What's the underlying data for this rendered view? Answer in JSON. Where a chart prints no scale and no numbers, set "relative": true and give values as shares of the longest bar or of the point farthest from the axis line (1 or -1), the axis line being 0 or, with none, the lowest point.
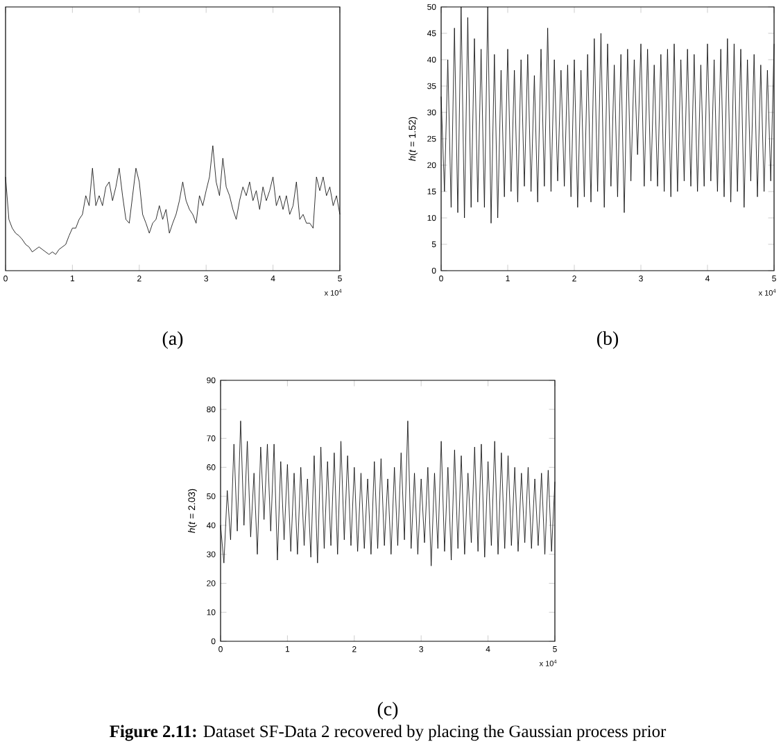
{
  "chart_data": [
    {
      "type": "line",
      "title": "(a)",
      "relative": true,
      "tick_labels": "x",
      "color": "#000000",
      "xlim": [
        0,
        5
      ],
      "xticks": [
        0,
        1,
        2,
        3,
        4,
        5
      ],
      "annotations": [
        "x 10$^{4}$"
      ],
      "x": [
        0,
        0.05,
        0.1,
        0.15,
        0.2,
        0.25,
        0.3,
        0.35,
        0.4,
        0.45,
        0.5,
        0.55,
        0.6,
        0.65,
        0.7,
        0.75,
        0.8,
        0.85,
        0.9,
        0.95,
        1,
        1.05,
        1.1,
        1.15,
        1.2,
        1.25,
        1.3,
        1.35,
        1.4,
        1.45,
        1.5,
        1.55,
        1.6,
        1.65,
        1.7,
        1.75,
        1.8,
        1.85,
        1.9,
        1.95,
        2,
        2.05,
        2.1,
        2.15,
        2.2,
        2.25,
        2.3,
        2.35,
        2.4,
        2.45,
        2.5,
        2.55,
        2.6,
        2.65,
        2.7,
        2.75,
        2.8,
        2.85,
        2.9,
        2.95,
        3,
        3.05,
        3.1,
        3.15,
        3.2,
        3.25,
        3.3,
        3.35,
        3.4,
        3.45,
        3.5,
        3.55,
        3.6,
        3.65,
        3.7,
        3.75,
        3.8,
        3.85,
        3.9,
        3.95,
        4,
        4.05,
        4.1,
        4.15,
        4.2,
        4.25,
        4.3,
        4.35,
        4.4,
        4.45,
        4.5,
        4.55,
        4.6,
        4.65,
        4.7,
        4.75,
        4.8,
        4.85,
        4.9,
        4.95,
        5
      ],
      "values": [
        0.75,
        0.41,
        0.34,
        0.3,
        0.28,
        0.25,
        0.21,
        0.19,
        0.15,
        0.17,
        0.19,
        0.17,
        0.15,
        0.13,
        0.15,
        0.13,
        0.17,
        0.19,
        0.21,
        0.28,
        0.34,
        0.34,
        0.41,
        0.45,
        0.6,
        0.52,
        0.82,
        0.52,
        0.6,
        0.52,
        0.67,
        0.71,
        0.56,
        0.67,
        0.82,
        0.6,
        0.41,
        0.38,
        0.6,
        0.82,
        0.71,
        0.45,
        0.38,
        0.3,
        0.38,
        0.41,
        0.52,
        0.41,
        0.49,
        0.3,
        0.38,
        0.45,
        0.56,
        0.71,
        0.56,
        0.49,
        0.45,
        0.38,
        0.6,
        0.52,
        0.64,
        0.75,
        1,
        0.71,
        0.6,
        0.9,
        0.67,
        0.6,
        0.49,
        0.41,
        0.56,
        0.67,
        0.6,
        0.71,
        0.56,
        0.64,
        0.49,
        0.67,
        0.56,
        0.64,
        0.75,
        0.52,
        0.6,
        0.49,
        0.6,
        0.45,
        0.52,
        0.71,
        0.41,
        0.45,
        0.38,
        0.38,
        0.34,
        0.75,
        0.64,
        0.75,
        0.6,
        0.67,
        0.52,
        0.6,
        0.45
      ]
    },
    {
      "type": "line",
      "title": "(b)",
      "ylabel": "*h*(*t* = 1.52)",
      "color": "#000000",
      "xlim": [
        0,
        5
      ],
      "xticks": [
        0,
        1,
        2,
        3,
        4,
        5
      ],
      "ylim": [
        0,
        50
      ],
      "yticks": [
        0,
        5,
        10,
        15,
        20,
        25,
        30,
        35,
        40,
        45,
        50
      ],
      "annotations": [
        "x 10$^{4}$"
      ],
      "x": [
        0,
        0.05,
        0.1,
        0.15,
        0.2,
        0.25,
        0.3,
        0.35,
        0.4,
        0.45,
        0.5,
        0.55,
        0.6,
        0.65,
        0.7,
        0.75,
        0.8,
        0.85,
        0.9,
        0.95,
        1,
        1.05,
        1.1,
        1.15,
        1.2,
        1.25,
        1.3,
        1.35,
        1.4,
        1.45,
        1.5,
        1.55,
        1.6,
        1.65,
        1.7,
        1.75,
        1.8,
        1.85,
        1.9,
        1.95,
        2,
        2.05,
        2.1,
        2.15,
        2.2,
        2.25,
        2.3,
        2.35,
        2.4,
        2.45,
        2.5,
        2.55,
        2.6,
        2.65,
        2.7,
        2.75,
        2.8,
        2.85,
        2.9,
        2.95,
        3,
        3.05,
        3.1,
        3.15,
        3.2,
        3.25,
        3.3,
        3.35,
        3.4,
        3.45,
        3.5,
        3.55,
        3.6,
        3.65,
        3.7,
        3.75,
        3.8,
        3.85,
        3.9,
        3.95,
        4,
        4.05,
        4.1,
        4.15,
        4.2,
        4.25,
        4.3,
        4.35,
        4.4,
        4.45,
        4.5,
        4.55,
        4.6,
        4.65,
        4.7,
        4.75,
        4.8,
        4.85,
        4.9,
        4.95,
        5
      ],
      "values": [
        33,
        15,
        40,
        12,
        46,
        11,
        50,
        10,
        48,
        12,
        44,
        13,
        42,
        12,
        50,
        9,
        41,
        10,
        38,
        14,
        42,
        15,
        38,
        13,
        40,
        16,
        41,
        15,
        37,
        13,
        42,
        16,
        46,
        15,
        40,
        17,
        38,
        16,
        39,
        14,
        40,
        12,
        38,
        14,
        41,
        13,
        44,
        15,
        45,
        12,
        43,
        16,
        39,
        14,
        41,
        11,
        42,
        17,
        40,
        22,
        43,
        16,
        42,
        17,
        39,
        16,
        41,
        15,
        42,
        14,
        43,
        15,
        40,
        17,
        42,
        16,
        41,
        15,
        39,
        16,
        43,
        17,
        40,
        15,
        42,
        14,
        44,
        13,
        43,
        15,
        42,
        12,
        40,
        17,
        41,
        14,
        39,
        15,
        38,
        17,
        43
      ]
    },
    {
      "type": "line",
      "title": "(c)",
      "ylabel": "*h*(*t* = 2.03)",
      "color": "#000000",
      "xlim": [
        0,
        5
      ],
      "xticks": [
        0,
        1,
        2,
        3,
        4,
        5
      ],
      "ylim": [
        0,
        90
      ],
      "yticks": [
        0,
        10,
        20,
        30,
        40,
        50,
        60,
        70,
        80,
        90
      ],
      "annotations": [
        "x 10$^{4}$",
        "**Figure 2.11:** Dataset SF-Data 2 recovered by placing the Gaussian process prior"
      ],
      "x": [
        0,
        0.05,
        0.1,
        0.15,
        0.2,
        0.25,
        0.3,
        0.35,
        0.4,
        0.45,
        0.5,
        0.55,
        0.6,
        0.65,
        0.7,
        0.75,
        0.8,
        0.85,
        0.9,
        0.95,
        1,
        1.05,
        1.1,
        1.15,
        1.2,
        1.25,
        1.3,
        1.35,
        1.4,
        1.45,
        1.5,
        1.55,
        1.6,
        1.65,
        1.7,
        1.75,
        1.8,
        1.85,
        1.9,
        1.95,
        2,
        2.05,
        2.1,
        2.15,
        2.2,
        2.25,
        2.3,
        2.35,
        2.4,
        2.45,
        2.5,
        2.55,
        2.6,
        2.65,
        2.7,
        2.75,
        2.8,
        2.85,
        2.9,
        2.95,
        3,
        3.05,
        3.1,
        3.15,
        3.2,
        3.25,
        3.3,
        3.35,
        3.4,
        3.45,
        3.5,
        3.55,
        3.6,
        3.65,
        3.7,
        3.75,
        3.8,
        3.85,
        3.9,
        3.95,
        4,
        4.05,
        4.1,
        4.15,
        4.2,
        4.25,
        4.3,
        4.35,
        4.4,
        4.45,
        4.5,
        4.55,
        4.6,
        4.65,
        4.7,
        4.75,
        4.8,
        4.85,
        4.9,
        4.95,
        5
      ],
      "values": [
        40,
        27,
        52,
        35,
        68,
        38,
        76,
        40,
        69,
        36,
        58,
        30,
        67,
        42,
        68,
        38,
        68,
        28,
        62,
        35,
        61,
        31,
        58,
        30,
        60,
        33,
        56,
        29,
        64,
        27,
        67,
        32,
        62,
        33,
        65,
        30,
        69,
        35,
        64,
        33,
        60,
        31,
        58,
        32,
        56,
        30,
        62,
        32,
        63,
        33,
        56,
        30,
        60,
        33,
        65,
        35,
        76,
        32,
        58,
        30,
        56,
        34,
        60,
        26,
        58,
        32,
        69,
        31,
        60,
        28,
        66,
        32,
        64,
        30,
        58,
        34,
        67,
        31,
        68,
        29,
        62,
        33,
        69,
        30,
        65,
        32,
        64,
        33,
        60,
        31,
        58,
        34,
        60,
        32,
        56,
        33,
        58,
        30,
        59,
        31,
        55
      ]
    }
  ]
}
